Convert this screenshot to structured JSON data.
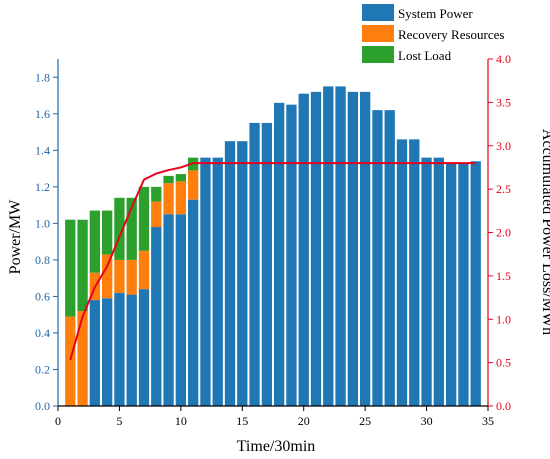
{
  "chart_data": {
    "type": "bar",
    "stacked": true,
    "x": [
      1,
      2,
      3,
      4,
      5,
      6,
      7,
      8,
      9,
      10,
      11,
      12,
      13,
      14,
      15,
      16,
      17,
      18,
      19,
      20,
      21,
      22,
      23,
      24,
      25,
      26,
      27,
      28,
      29,
      30,
      31,
      32,
      33,
      34
    ],
    "series": [
      {
        "name": "System Power",
        "color": "#1f77b4",
        "values": [
          0,
          0,
          0.58,
          0.59,
          0.62,
          0.61,
          0.64,
          0.98,
          1.05,
          1.05,
          1.13,
          1.36,
          1.36,
          1.45,
          1.45,
          1.55,
          1.55,
          1.66,
          1.65,
          1.71,
          1.72,
          1.75,
          1.75,
          1.72,
          1.72,
          1.62,
          1.62,
          1.46,
          1.46,
          1.36,
          1.36,
          1.33,
          1.33,
          1.34
        ]
      },
      {
        "name": "Recovery Resources",
        "color": "#ff7f0e",
        "values": [
          0.49,
          0.52,
          0.15,
          0.24,
          0.18,
          0.19,
          0.21,
          0.14,
          0.17,
          0.18,
          0.16,
          0,
          0,
          0,
          0,
          0,
          0,
          0,
          0,
          0,
          0,
          0,
          0,
          0,
          0,
          0,
          0,
          0,
          0,
          0,
          0,
          0,
          0,
          0
        ]
      },
      {
        "name": "Lost Load",
        "color": "#2ca02c",
        "values": [
          0.53,
          0.5,
          0.34,
          0.24,
          0.34,
          0.34,
          0.35,
          0.08,
          0.04,
          0.04,
          0.07,
          0,
          0,
          0,
          0,
          0,
          0,
          0,
          0,
          0,
          0,
          0,
          0,
          0,
          0,
          0,
          0,
          0,
          0,
          0,
          0,
          0,
          0,
          0
        ]
      }
    ],
    "line_series": {
      "name": "Accumulated Power Loss",
      "color": "#e8001c",
      "axis": "right",
      "x": [
        1,
        2,
        3,
        4,
        5,
        6,
        7,
        8,
        9,
        10,
        11,
        12,
        13,
        14,
        15,
        16,
        17,
        18,
        19,
        20,
        21,
        22,
        23,
        24,
        25,
        26,
        27,
        28,
        29,
        30,
        31,
        32,
        33,
        34
      ],
      "values": [
        0.53,
        1.03,
        1.37,
        1.61,
        1.95,
        2.29,
        2.61,
        2.68,
        2.72,
        2.75,
        2.8,
        2.8,
        2.8,
        2.8,
        2.8,
        2.8,
        2.8,
        2.8,
        2.8,
        2.8,
        2.8,
        2.8,
        2.8,
        2.8,
        2.8,
        2.8,
        2.8,
        2.8,
        2.8,
        2.8,
        2.8,
        2.8,
        2.8,
        2.8
      ]
    },
    "xlabel": "Time/30min",
    "ylabel": "Power/MW",
    "ylabel_right": "Accumulated Power Loss/MWh",
    "xlim": [
      0,
      35
    ],
    "ylim": [
      0,
      1.9
    ],
    "ylim_right": [
      0,
      4.0
    ],
    "x_ticks": [
      0,
      5,
      10,
      15,
      20,
      25,
      30,
      35
    ],
    "y_ticks": [
      "0.0",
      "0.2",
      "0.4",
      "0.6",
      "0.8",
      "1.0",
      "1.2",
      "1.4",
      "1.6",
      "1.8"
    ],
    "y_ticks_right": [
      "0.0",
      "0.5",
      "1.0",
      "1.5",
      "2.0",
      "2.5",
      "3.0",
      "3.5",
      "4.0"
    ],
    "legend_position": "top-right",
    "grid": false,
    "left_axis_color": "#1f66a6",
    "right_axis_color": "#e8001c"
  }
}
